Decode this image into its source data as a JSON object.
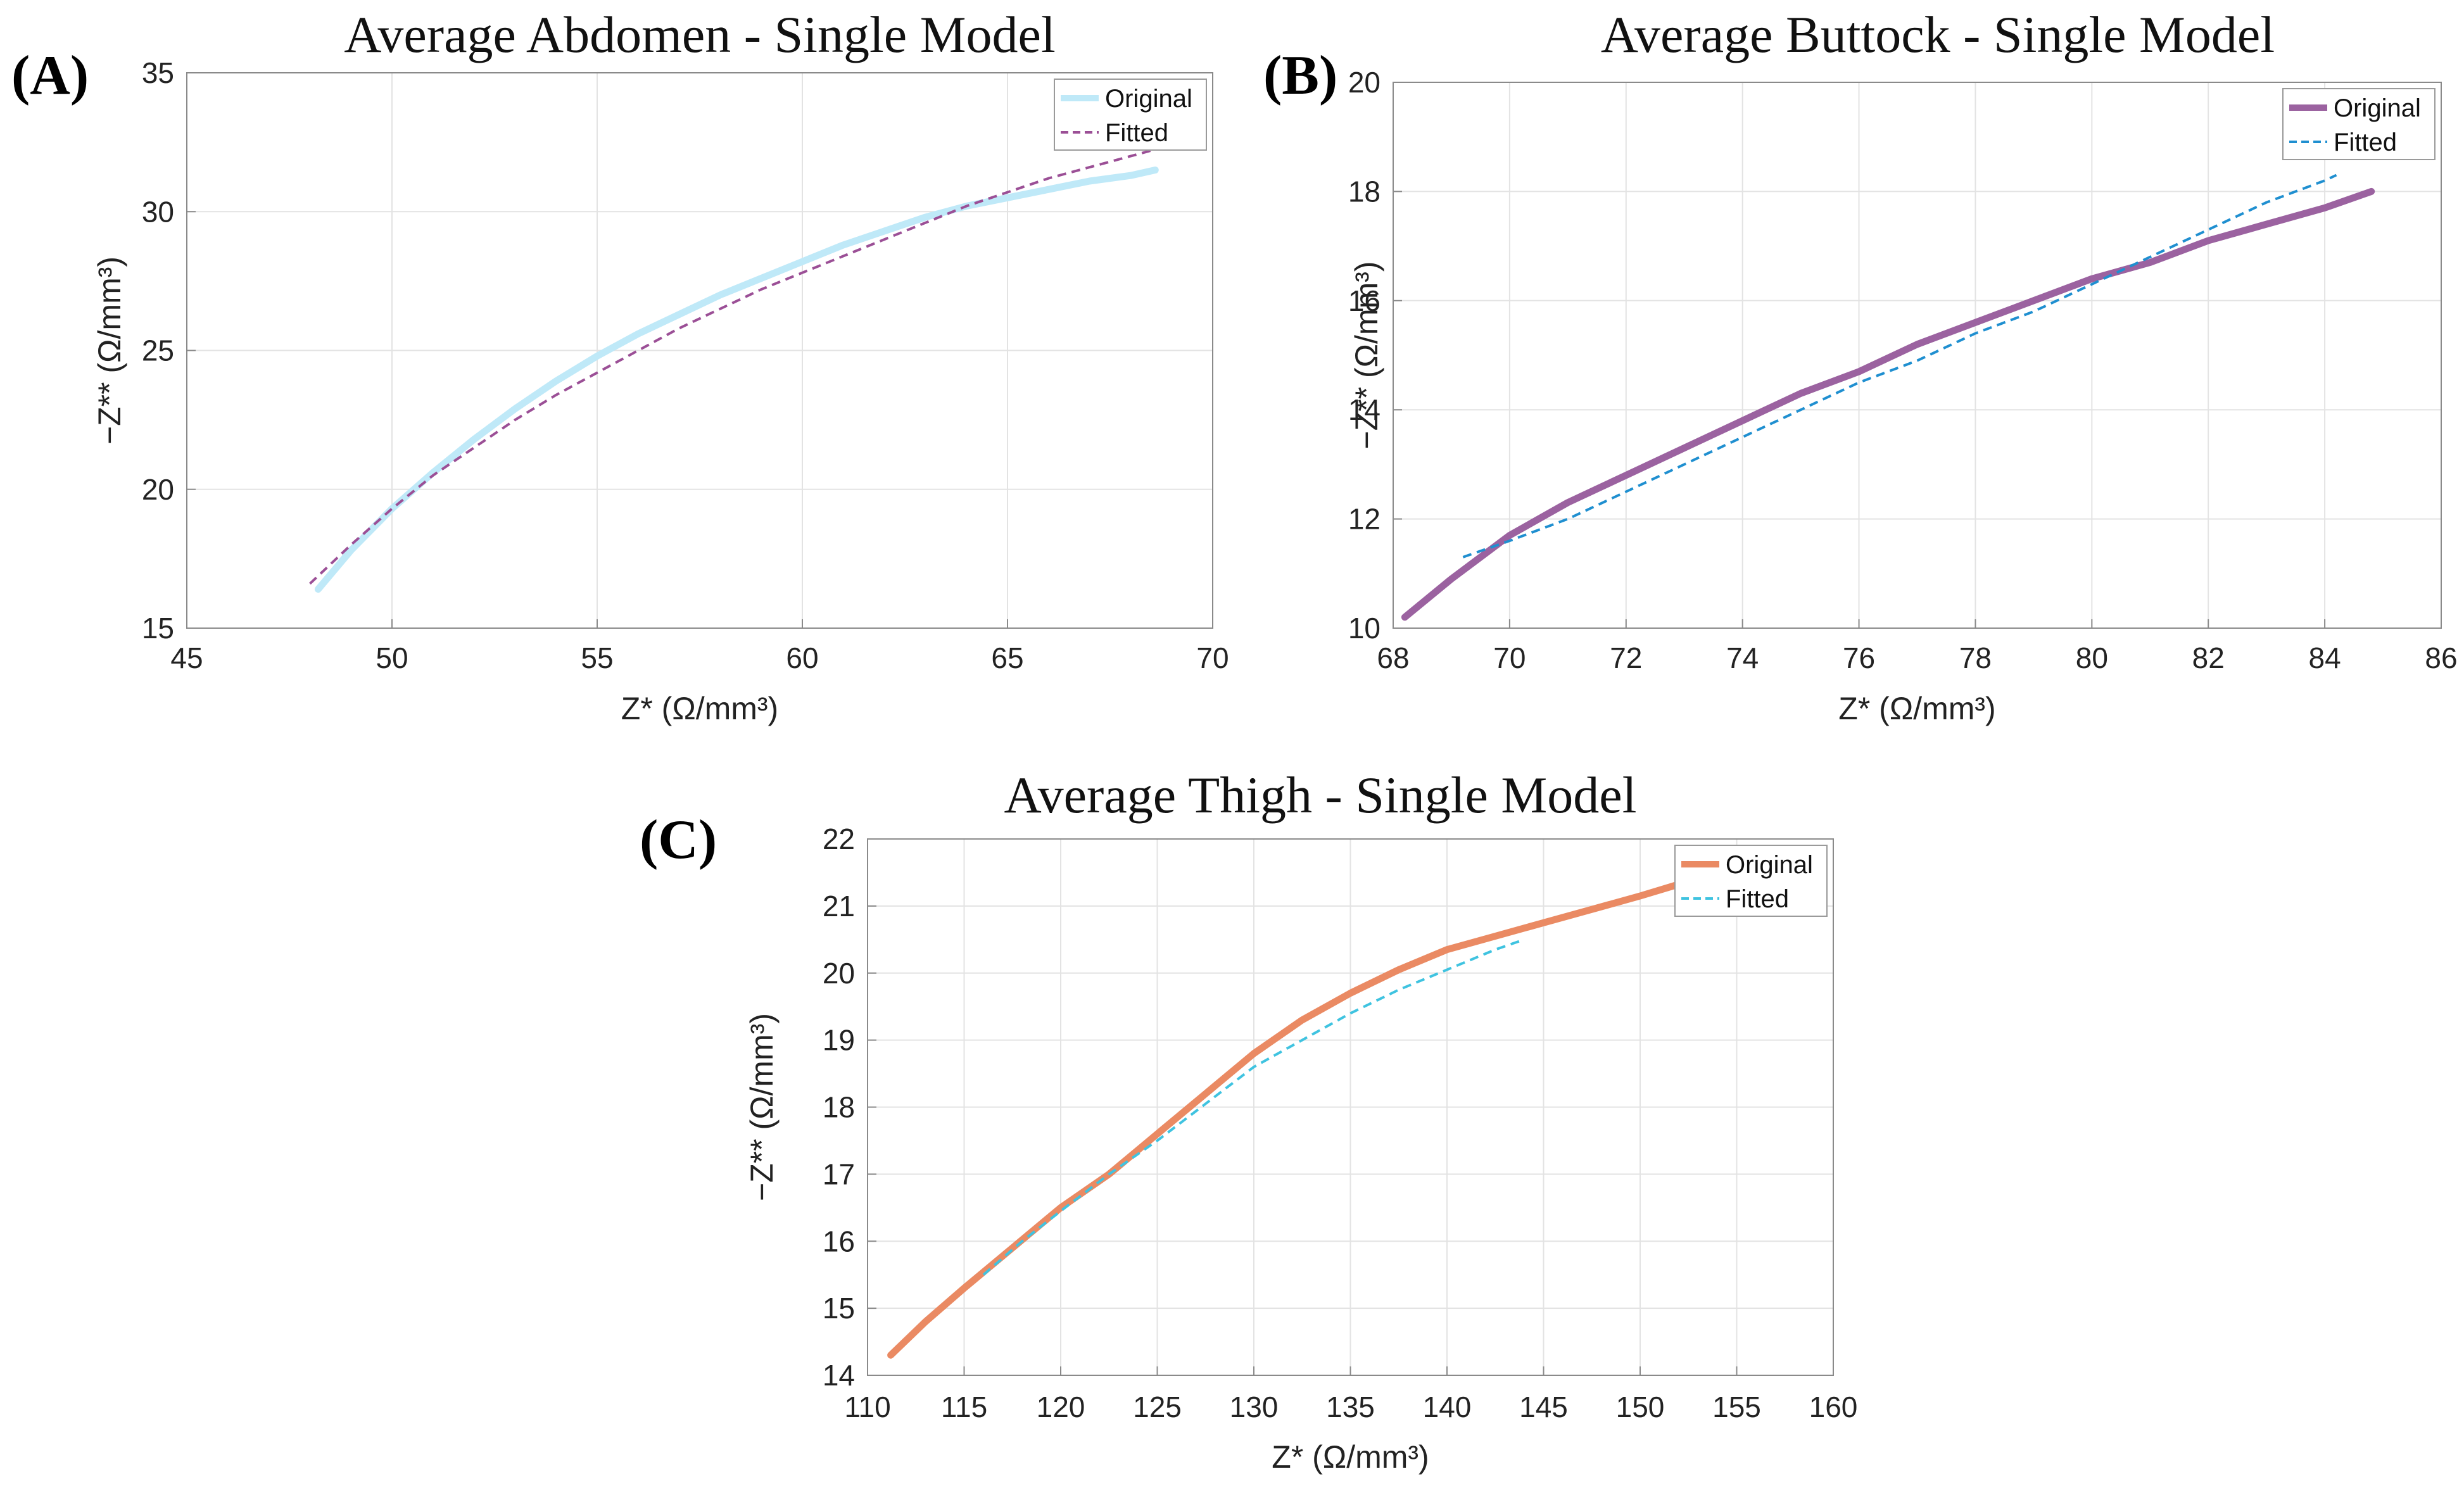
{
  "chart_data": [
    {
      "panel": "(A)",
      "type": "line",
      "title": "Average Abdomen - Single Model",
      "xlabel": "Z* (Ω/mm³)",
      "ylabel": "−Z** (Ω/mm³)",
      "xlim": [
        45,
        70
      ],
      "ylim": [
        15,
        35
      ],
      "xticks": [
        45,
        50,
        55,
        60,
        65,
        70
      ],
      "yticks": [
        15,
        20,
        25,
        30,
        35
      ],
      "grid": true,
      "legend": "top-right",
      "series": [
        {
          "name": "Original",
          "color": "#bfe9f8",
          "style": "solid",
          "x": [
            48.2,
            49,
            50,
            51,
            52,
            53,
            54,
            55,
            56,
            57,
            58,
            59,
            60,
            61,
            62,
            63,
            64,
            65,
            66,
            67,
            68,
            68.6
          ],
          "y": [
            16.4,
            17.8,
            19.3,
            20.6,
            21.8,
            22.9,
            23.9,
            24.8,
            25.6,
            26.3,
            27.0,
            27.6,
            28.2,
            28.8,
            29.3,
            29.8,
            30.2,
            30.5,
            30.8,
            31.1,
            31.3,
            31.5
          ]
        },
        {
          "name": "Fitted",
          "color": "#9b4f96",
          "style": "dashed",
          "x": [
            48.0,
            49,
            50,
            51,
            52,
            53,
            54,
            55,
            56,
            57,
            58,
            59,
            60,
            61,
            62,
            63,
            64,
            65,
            66,
            67,
            68,
            68.5
          ],
          "y": [
            16.6,
            18.0,
            19.3,
            20.5,
            21.5,
            22.5,
            23.4,
            24.2,
            25.0,
            25.8,
            26.5,
            27.2,
            27.8,
            28.4,
            29.0,
            29.6,
            30.2,
            30.7,
            31.2,
            31.6,
            32.0,
            32.2
          ]
        }
      ]
    },
    {
      "panel": "(B)",
      "type": "line",
      "title": "Average Buttock - Single Model",
      "xlabel": "Z* (Ω/mm³)",
      "ylabel": "−Z** (Ω/mm³)",
      "xlim": [
        68,
        86
      ],
      "ylim": [
        10,
        20
      ],
      "xticks": [
        68,
        70,
        72,
        74,
        76,
        78,
        80,
        82,
        84,
        86
      ],
      "yticks": [
        10,
        12,
        14,
        16,
        18,
        20
      ],
      "grid": true,
      "legend": "top-right",
      "series": [
        {
          "name": "Original",
          "color": "#9b62a0",
          "style": "solid",
          "x": [
            68.2,
            69,
            70,
            71,
            72,
            73,
            74,
            75,
            76,
            77,
            78,
            79,
            80,
            81,
            82,
            83,
            84,
            84.8
          ],
          "y": [
            10.2,
            10.9,
            11.7,
            12.3,
            12.8,
            13.3,
            13.8,
            14.3,
            14.7,
            15.2,
            15.6,
            16.0,
            16.4,
            16.7,
            17.1,
            17.4,
            17.7,
            18.0
          ]
        },
        {
          "name": "Fitted",
          "color": "#1f8fd0",
          "style": "dashed",
          "x": [
            69.2,
            70,
            71,
            72,
            73,
            74,
            75,
            76,
            77,
            78,
            79,
            80,
            81,
            82,
            83,
            84,
            84.2
          ],
          "y": [
            11.3,
            11.6,
            12.0,
            12.5,
            13.0,
            13.5,
            14.0,
            14.5,
            14.9,
            15.4,
            15.8,
            16.3,
            16.8,
            17.3,
            17.8,
            18.2,
            18.3
          ]
        }
      ]
    },
    {
      "panel": "(C)",
      "type": "line",
      "title": "Average Thigh - Single Model",
      "xlabel": "Z* (Ω/mm³)",
      "ylabel": "−Z** (Ω/mm³)",
      "xlim": [
        110,
        160
      ],
      "ylim": [
        14,
        22
      ],
      "xticks": [
        110,
        115,
        120,
        125,
        130,
        135,
        140,
        145,
        150,
        155,
        160
      ],
      "yticks": [
        14,
        15,
        16,
        17,
        18,
        19,
        20,
        21,
        22
      ],
      "grid": true,
      "legend": "top-right",
      "series": [
        {
          "name": "Original",
          "color": "#ea8a63",
          "style": "solid",
          "x": [
            111.2,
            113,
            115,
            117.5,
            120,
            122.5,
            125,
            127.5,
            130,
            132.5,
            135,
            137.5,
            140,
            142.5,
            145,
            147.5,
            150,
            152.3
          ],
          "y": [
            14.3,
            14.8,
            15.3,
            15.9,
            16.5,
            17.0,
            17.6,
            18.2,
            18.8,
            19.3,
            19.7,
            20.05,
            20.35,
            20.55,
            20.75,
            20.95,
            21.15,
            21.35
          ]
        },
        {
          "name": "Fitted",
          "color": "#3fc3e0",
          "style": "dashed",
          "x": [
            116,
            118,
            120,
            122.5,
            125,
            127.5,
            130,
            132.5,
            135,
            137.5,
            140,
            142.5,
            144
          ],
          "y": [
            15.5,
            16.0,
            16.45,
            17.0,
            17.5,
            18.05,
            18.6,
            19.0,
            19.4,
            19.75,
            20.05,
            20.35,
            20.5
          ]
        }
      ]
    }
  ]
}
